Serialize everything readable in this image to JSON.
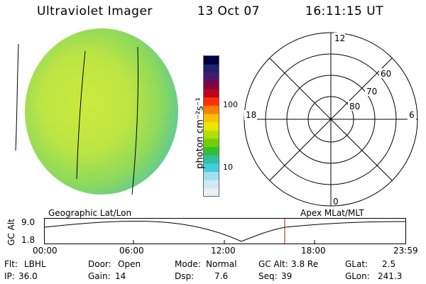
{
  "header": {
    "instrument": "Ultraviolet Imager",
    "date": "13 Oct 07",
    "time": "16:11:15 UT"
  },
  "colorbar": {
    "label": "photon cm⁻²s⁻¹",
    "ticks": [
      "100",
      "10"
    ],
    "colors": [
      "#000040",
      "#202070",
      "#4a1a6a",
      "#800040",
      "#c00020",
      "#ff3000",
      "#ff8000",
      "#ffc000",
      "#e8e800",
      "#b0e000",
      "#70d000",
      "#30c030",
      "#30c0a0",
      "#40d0e0",
      "#a0e0f0",
      "#d0e8f0",
      "#e8f0f8"
    ]
  },
  "polar": {
    "labels": {
      "top": "12",
      "left": "18",
      "right": "6",
      "bottom": "0",
      "r60": "60",
      "r70": "70",
      "r80": "80"
    }
  },
  "timeline": {
    "left_label": "Geographic Lat/Lon",
    "right_label": "Apex MLat/MLT",
    "axis_title": "GC Alt",
    "y_ticks": [
      "9.0",
      "1.8"
    ],
    "x_ticks": [
      "00:00",
      "06:00",
      "12:00",
      "18:00",
      "23:59"
    ],
    "marker_time": "16:11"
  },
  "footer": {
    "row1": [
      {
        "key": "Flt:",
        "val": "LBHL"
      },
      {
        "key": "Door:",
        "val": "Open"
      },
      {
        "key": "Mode:",
        "val": "Normal"
      },
      {
        "key": "GC Alt:",
        "val": "3.8 Re"
      },
      {
        "key": "GLat:",
        "val": "2.5"
      }
    ],
    "row2": [
      {
        "key": "IP:",
        "val": "36.0"
      },
      {
        "key": "Gain:",
        "val": "14"
      },
      {
        "key": "Dsp:",
        "val": "7.6"
      },
      {
        "key": "Seq:",
        "val": "39"
      },
      {
        "key": "GLon:",
        "val": "241.3"
      }
    ]
  }
}
